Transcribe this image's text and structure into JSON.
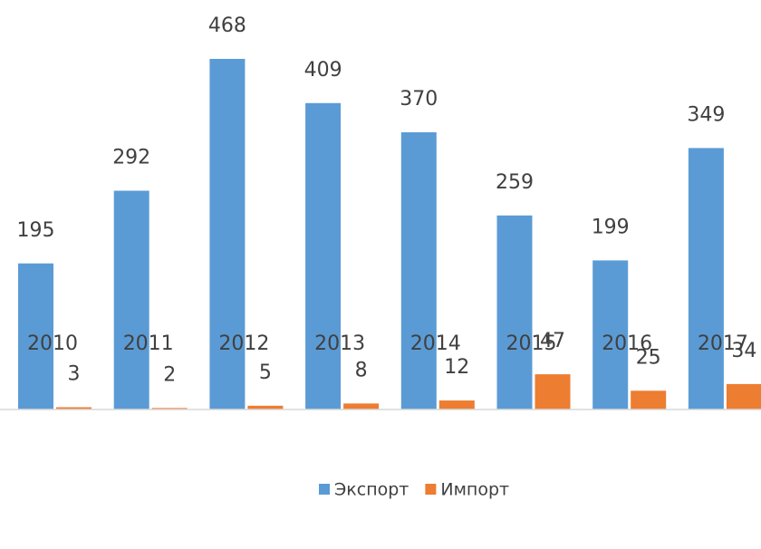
{
  "chart_data": {
    "type": "bar",
    "categories": [
      "2010",
      "2011",
      "2012",
      "2013",
      "2014",
      "2015",
      "2016",
      "2017"
    ],
    "series": [
      {
        "name": "Экспорт",
        "color": "#5b9bd5",
        "values": [
          195,
          292,
          468,
          409,
          370,
          259,
          199,
          349
        ]
      },
      {
        "name": "Импорт",
        "color": "#ed7d31",
        "values": [
          3,
          2,
          5,
          8,
          12,
          47,
          25,
          34
        ]
      }
    ],
    "legend": "bottom"
  }
}
